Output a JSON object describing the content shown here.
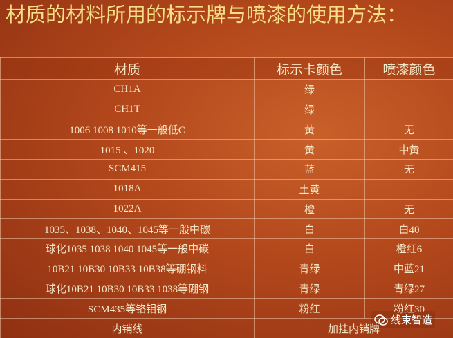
{
  "title": "材质的材料所用的标示牌与喷漆的使用方法：",
  "table": {
    "header": [
      "材质",
      "标示卡颜色",
      "喷漆颜色"
    ],
    "rows": [
      [
        "CH1A",
        "绿",
        null
      ],
      [
        "CH1T",
        "绿",
        null
      ],
      [
        "1006 1008 1010等一般低C",
        "黄",
        "无"
      ],
      [
        "1015 、1020",
        "黄",
        "中黄"
      ],
      [
        "SCM415",
        "蓝",
        "无"
      ],
      [
        "1018A",
        "土黄",
        null
      ],
      [
        "1022A",
        "橙",
        "无"
      ],
      [
        "1035、1038、1040、1045等一般中碳",
        "白",
        "白40"
      ],
      [
        "球化1035 1038 1040 1045等一般中碳",
        "白",
        "橙红6"
      ],
      [
        "10B21 10B30 10B33 10B38等硼钢料",
        "青绿",
        "中蓝21"
      ],
      [
        "球化10B21 10B30 10B33 1038等硼钢",
        "青绿",
        "青绿27"
      ],
      [
        "SCM435等铬钼钢",
        "粉红",
        "粉红30"
      ]
    ],
    "footer": [
      "内销线",
      "加挂内销牌"
    ]
  },
  "watermark": "线束智造"
}
